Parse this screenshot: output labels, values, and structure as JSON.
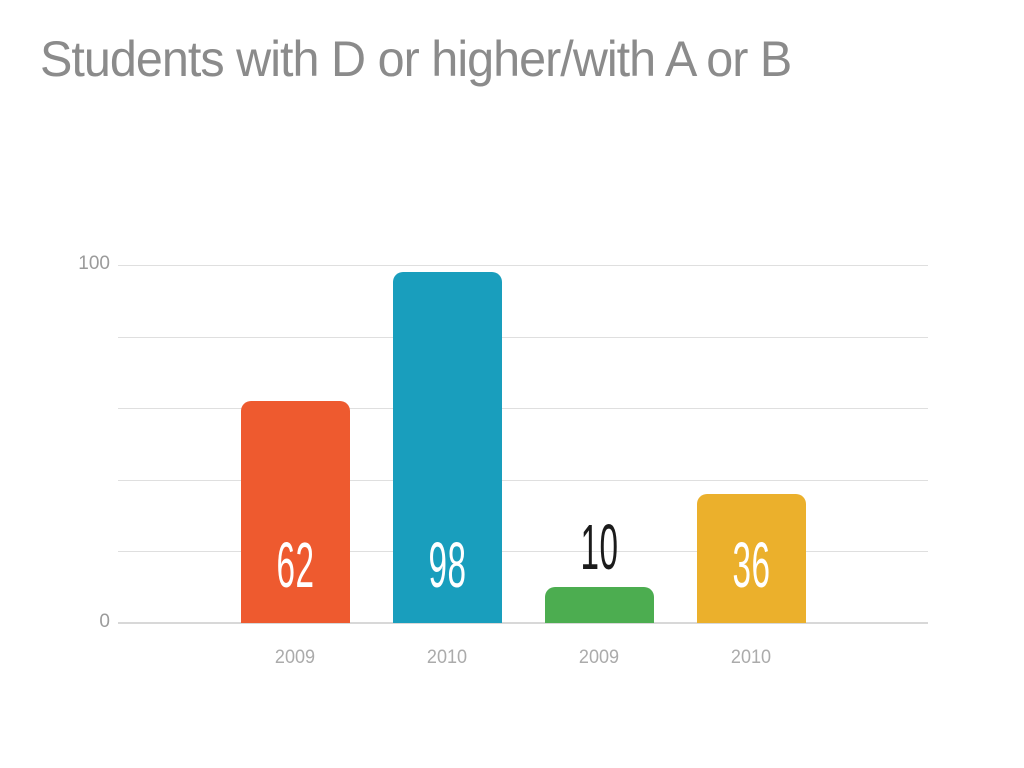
{
  "page": {
    "background": "#FFFFFF"
  },
  "chart_data": {
    "type": "bar",
    "title": "Students with D or higher/with A or B",
    "title_color": "#8B8B8B",
    "categories": [
      "2009",
      "2010",
      "2009",
      "2010"
    ],
    "values": [
      62,
      98,
      10,
      36
    ],
    "value_labels": [
      "62",
      "98",
      "10",
      "36"
    ],
    "bar_colors": [
      "#EE5A2F",
      "#199EBD",
      "#4CAD50",
      "#EBB02C"
    ],
    "value_label_colors": [
      "#FFFFFF",
      "#FFFFFF",
      "#1B1B1B",
      "#FFFFFF"
    ],
    "value_label_placements": [
      "inside",
      "inside",
      "above",
      "inside"
    ],
    "xlabel": "",
    "ylabel": "",
    "ylim": [
      0,
      100
    ],
    "yticks": [
      0,
      20,
      40,
      60,
      80,
      100
    ],
    "ytick_labels": [
      "0",
      "",
      "",
      "",
      "",
      "100"
    ],
    "grid": true,
    "grid_color": "#DFDFDF",
    "baseline_color": "#D8D8D8",
    "y_axis_text_color": "#9B9B9B",
    "x_axis_text_color": "#ABABAB",
    "legend": "none"
  }
}
